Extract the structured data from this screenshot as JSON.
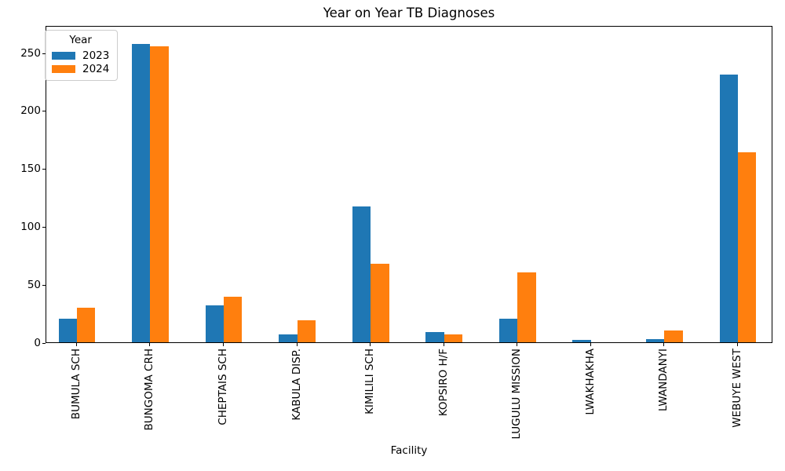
{
  "figure": {
    "title": "Year on Year TB Diagnoses",
    "xlabel": "Facility"
  },
  "legend": {
    "title": "Year",
    "items": [
      {
        "label": "2023",
        "color": "#1f77b4"
      },
      {
        "label": "2024",
        "color": "#ff7f0e"
      }
    ]
  },
  "chart_data": {
    "type": "bar",
    "title": "Year on Year TB Diagnoses",
    "xlabel": "Facility",
    "ylabel": "",
    "categories": [
      "BUMULA SCH",
      "BUNGOMA CRH",
      "CHEPTAIS SCH",
      "KABULA DISP.",
      "KIMILILI SCH",
      "KOPSIRO H/F",
      "LUGULU MISSION",
      "LWAKHAKHA",
      "LWANDANYI",
      "WEBUYE WEST"
    ],
    "series": [
      {
        "name": "2023",
        "color": "#1f77b4",
        "values": [
          20,
          257,
          32,
          7,
          117,
          9,
          20,
          2,
          3,
          231
        ]
      },
      {
        "name": "2024",
        "color": "#ff7f0e",
        "values": [
          30,
          255,
          39,
          19,
          68,
          7,
          60,
          0,
          10,
          164
        ]
      }
    ],
    "yticks": [
      0,
      50,
      100,
      150,
      200,
      250
    ],
    "ylim": [
      0,
      272
    ],
    "grid": false,
    "legend_title": "Year",
    "legend_position": "upper left"
  }
}
